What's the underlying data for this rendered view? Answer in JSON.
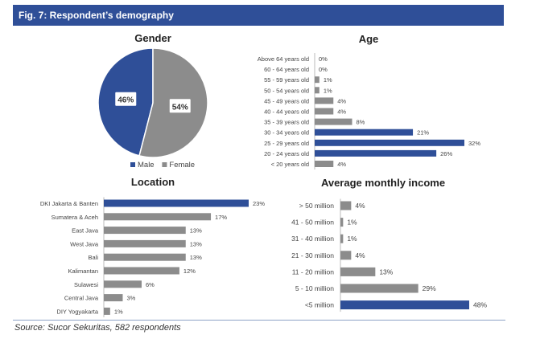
{
  "figure_title": "Fig. 7: Respondent’s demography",
  "source": "Source: Sucor Sekuritas, 582 respondents",
  "colors": {
    "accent": "#2f4f98",
    "gray": "#8c8c8c",
    "label": "#444444"
  },
  "chart_data": [
    {
      "type": "pie",
      "title": "Gender",
      "categories": [
        "Male",
        "Female"
      ],
      "values": [
        46,
        54
      ],
      "value_labels": [
        "46%",
        "54%"
      ],
      "colors": [
        "#2f4f98",
        "#8c8c8c"
      ],
      "legend": "bottom"
    },
    {
      "type": "bar",
      "orientation": "horizontal",
      "title": "Age",
      "categories": [
        "Above 64 years old",
        "60 - 64 years old",
        "55 - 59 years old",
        "50 - 54 years old",
        "45 - 49 years old",
        "40 - 44 years old",
        "35 - 39 years old",
        "30 - 34 years old",
        "25 - 29 years old",
        "20 - 24 years old",
        "< 20 years old"
      ],
      "values": [
        0,
        0,
        1,
        1,
        4,
        4,
        8,
        21,
        32,
        26,
        4
      ],
      "value_labels": [
        "0%",
        "0%",
        "1%",
        "1%",
        "4%",
        "4%",
        "8%",
        "21%",
        "32%",
        "26%",
        "4%"
      ],
      "highlight": [
        false,
        false,
        false,
        false,
        false,
        false,
        false,
        true,
        true,
        true,
        false
      ]
    },
    {
      "type": "bar",
      "orientation": "horizontal",
      "title": "Location",
      "categories": [
        "DKI Jakarta & Banten",
        "Sumatera & Aceh",
        "East Java",
        "West Java",
        "Bali",
        "Kalimantan",
        "Sulawesi",
        "Central Java",
        "DIY Yogyakarta"
      ],
      "values": [
        23,
        17,
        13,
        13,
        13,
        12,
        6,
        3,
        1
      ],
      "value_labels": [
        "23%",
        "17%",
        "13%",
        "13%",
        "13%",
        "12%",
        "6%",
        "3%",
        "1%"
      ],
      "highlight": [
        true,
        false,
        false,
        false,
        false,
        false,
        false,
        false,
        false
      ]
    },
    {
      "type": "bar",
      "orientation": "horizontal",
      "title": "Average monthly income",
      "categories": [
        "> 50 million",
        "41 - 50 million",
        "31 - 40 million",
        "21 - 30 million",
        "11 - 20 million",
        "5 - 10 million",
        "<5 million"
      ],
      "values": [
        4,
        1,
        1,
        4,
        13,
        29,
        48
      ],
      "value_labels": [
        "4%",
        "1%",
        "1%",
        "4%",
        "13%",
        "29%",
        "48%"
      ],
      "highlight": [
        false,
        false,
        false,
        false,
        false,
        false,
        true
      ]
    }
  ]
}
